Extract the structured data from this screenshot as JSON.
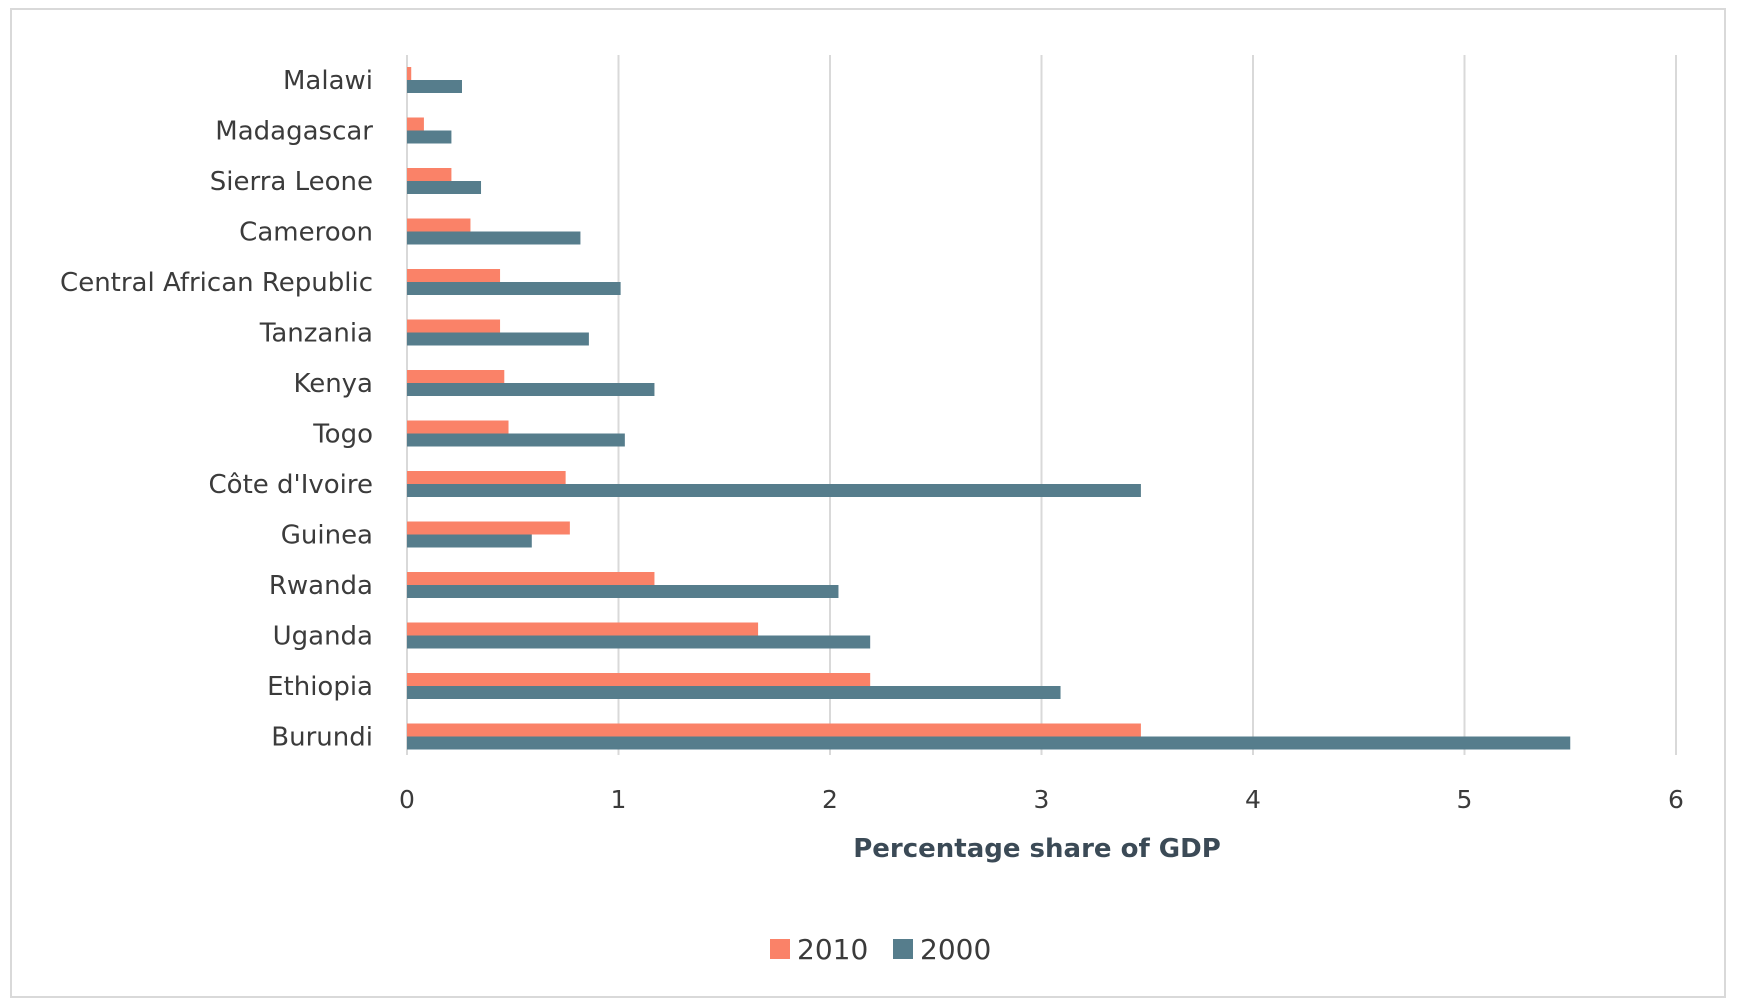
{
  "chart_data": {
    "type": "bar",
    "orientation": "horizontal",
    "categories": [
      "Malawi",
      "Madagascar",
      "Sierra Leone",
      "Cameroon",
      "Central African Republic",
      "Tanzania",
      "Kenya",
      "Togo",
      "Côte d'Ivoire",
      "Guinea",
      "Rwanda",
      "Uganda",
      "Ethiopia",
      "Burundi"
    ],
    "series": [
      {
        "name": "2010",
        "color": "#fa8268",
        "values": [
          0.02,
          0.08,
          0.21,
          0.3,
          0.44,
          0.44,
          0.46,
          0.48,
          0.75,
          0.77,
          1.17,
          1.66,
          2.19,
          3.47
        ]
      },
      {
        "name": "2000",
        "color": "#567d8c",
        "values": [
          0.26,
          0.21,
          0.35,
          0.82,
          1.01,
          0.86,
          1.17,
          1.03,
          3.47,
          0.59,
          2.04,
          2.19,
          3.09,
          5.5
        ]
      }
    ],
    "xlabel": "Percentage share of GDP",
    "ylabel": "",
    "xlim": [
      0,
      6
    ],
    "xticks": [
      "0",
      "1",
      "2",
      "3",
      "4",
      "5",
      "6"
    ],
    "grid": "vertical",
    "legend_position": "bottom"
  }
}
